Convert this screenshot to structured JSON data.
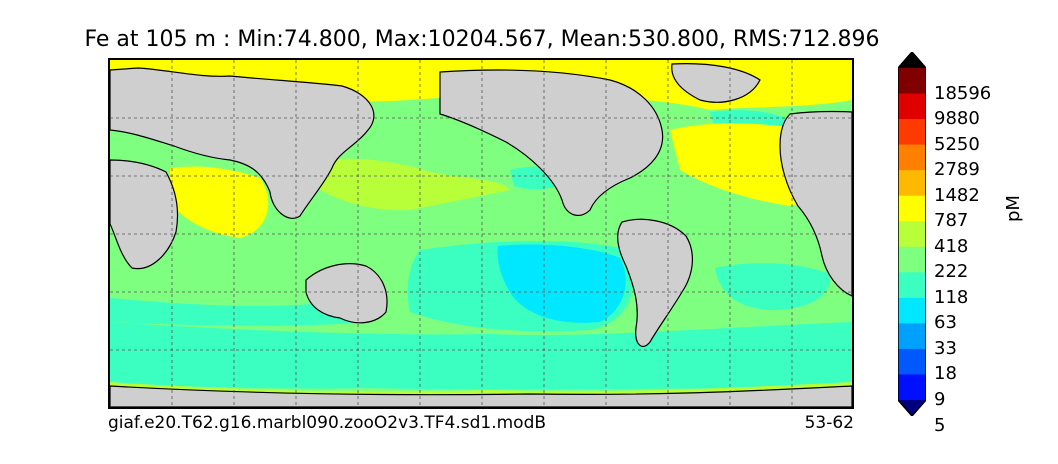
{
  "figure": {
    "title": "Fe at 105 m : Min:74.800, Max:10204.567, Mean:530.800, RMS:712.896",
    "footer_left": "giaf.e20.T62.g16.marbl090.zooO2v3.TF4.sd1.modB",
    "footer_right": "53-62"
  },
  "colorbar": {
    "units": "pM",
    "labels": [
      "18596",
      "9880",
      "5250",
      "2789",
      "1482",
      "787",
      "418",
      "222",
      "118",
      "63",
      "33",
      "18",
      "9",
      "5"
    ],
    "colors_top_to_bottom": [
      "#800000",
      "#e00000",
      "#ff3a00",
      "#ff7f00",
      "#ffb800",
      "#ffff00",
      "#b8ff3a",
      "#7fff7f",
      "#3affc0",
      "#00e8ff",
      "#00a0ff",
      "#0058ff",
      "#0010ff",
      "#0000b8",
      "#000080"
    ],
    "extend": "both"
  },
  "map": {
    "land_color": "#cfcfcf",
    "missing_color": "#ffffff",
    "gridlines": "dashed"
  }
}
